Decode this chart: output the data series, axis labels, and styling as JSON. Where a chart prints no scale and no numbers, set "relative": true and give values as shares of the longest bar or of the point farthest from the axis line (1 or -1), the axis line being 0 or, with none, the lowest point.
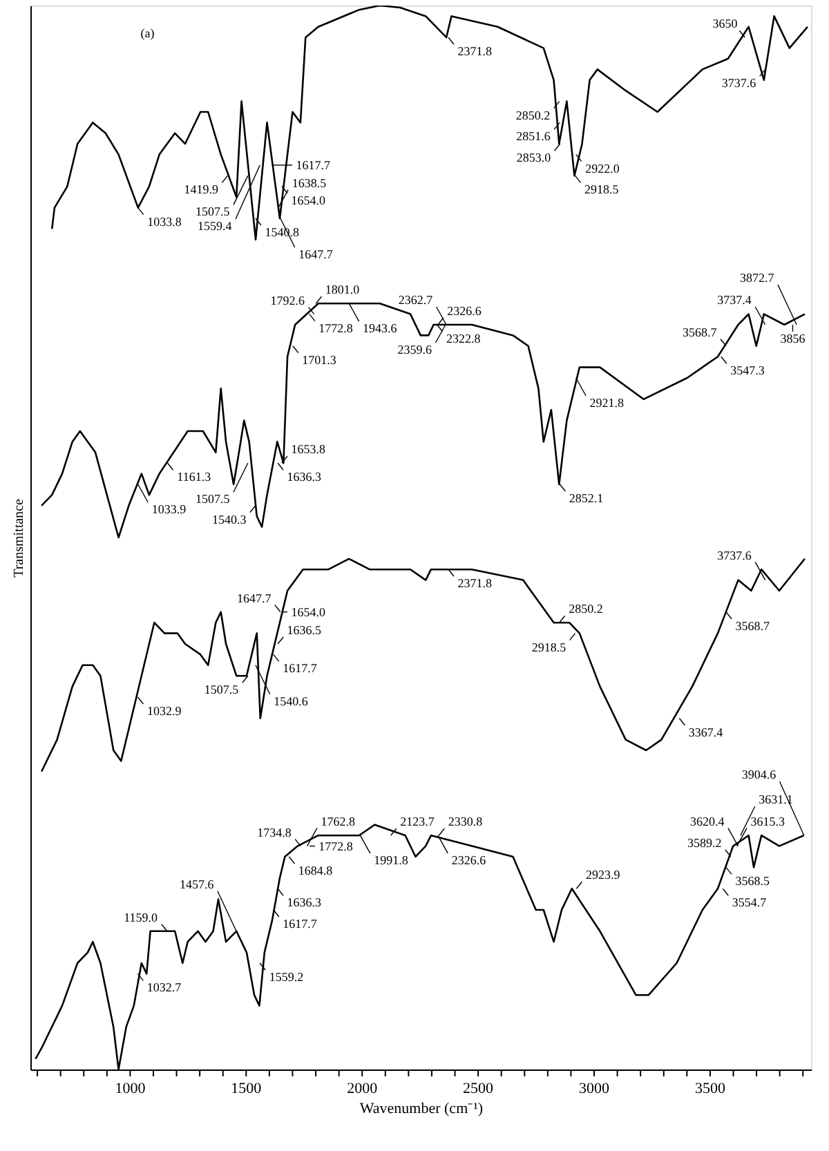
{
  "chart_data": {
    "type": "line",
    "relative": true,
    "xlabel": "Wavenumber (cm⁻¹)",
    "ylabel": "Transmittance",
    "tick_labels": "x",
    "xlim": [
      570,
      3935
    ],
    "xticks": [
      {
        "value": 600,
        "label": null
      },
      {
        "value": 700,
        "label": null
      },
      {
        "value": 800,
        "label": null
      },
      {
        "value": 900,
        "label": null
      },
      1000,
      {
        "value": 1100,
        "label": null
      },
      {
        "value": 1200,
        "label": null
      },
      {
        "value": 1300,
        "label": null
      },
      {
        "value": 1400,
        "label": null
      },
      1500,
      {
        "value": 1600,
        "label": null
      },
      {
        "value": 1700,
        "label": null
      },
      {
        "value": 1800,
        "label": null
      },
      {
        "value": 1900,
        "label": null
      },
      2000,
      {
        "value": 2100,
        "label": null
      },
      {
        "value": 2200,
        "label": null
      },
      {
        "value": 2300,
        "label": null
      },
      {
        "value": 2400,
        "label": null
      },
      2500,
      {
        "value": 2600,
        "label": null
      },
      {
        "value": 2700,
        "label": null
      },
      {
        "value": 2800,
        "label": null
      },
      {
        "value": 2900,
        "label": null
      },
      3000,
      {
        "value": 3100,
        "label": null
      },
      {
        "value": 3200,
        "label": null
      },
      {
        "value": 3300,
        "label": null
      },
      {
        "value": 3400,
        "label": null
      },
      3500,
      {
        "value": 3600,
        "label": null
      },
      {
        "value": 3700,
        "label": null
      },
      {
        "value": 3800,
        "label": null
      },
      {
        "value": 3900,
        "label": null
      }
    ],
    "series": [
      {
        "color": "#000000",
        "x": [
          663,
          674,
          729,
          773,
          839,
          894,
          950,
          1034,
          1082,
          1126,
          1193,
          1237,
          1303,
          1336,
          1391,
          1458,
          1480,
          1541,
          1590,
          1645,
          1700,
          1734,
          1756,
          1811,
          1987,
          2076,
          2164,
          2274,
          2363,
          2385,
          2584,
          2782,
          2826,
          2849,
          2882,
          2915,
          2948,
          2981,
          3014,
          3136,
          3273,
          3467,
          3577,
          3666,
          3732,
          3776,
          3842,
          3920
        ],
        "values": [
          0.79,
          0.81,
          0.83,
          0.87,
          0.89,
          0.88,
          0.86,
          0.81,
          0.83,
          0.86,
          0.88,
          0.87,
          0.9,
          0.9,
          0.86,
          0.82,
          0.91,
          0.78,
          0.89,
          0.8,
          0.9,
          0.89,
          0.97,
          0.98,
          0.996,
          1.0,
          0.998,
          0.99,
          0.97,
          0.99,
          0.98,
          0.96,
          0.93,
          0.87,
          0.91,
          0.84,
          0.87,
          0.93,
          0.94,
          0.92,
          0.9,
          0.94,
          0.95,
          0.98,
          0.93,
          0.99,
          0.96,
          0.98
        ]
      },
      {
        "color": "#000000",
        "x": [
          618,
          663,
          707,
          751,
          784,
          850,
          950,
          994,
          1049,
          1082,
          1126,
          1248,
          1314,
          1369,
          1391,
          1413,
          1446,
          1469,
          1491,
          1513,
          1546,
          1568,
          1590,
          1634,
          1661,
          1678,
          1711,
          1811,
          1888,
          1943,
          2076,
          2208,
          2252,
          2286,
          2308,
          2473,
          2650,
          2716,
          2760,
          2782,
          2815,
          2849,
          2882,
          2937,
          3025,
          3213,
          3401,
          3533,
          3621,
          3666,
          3699,
          3732,
          3820,
          3908
        ],
        "values": [
          0.53,
          0.54,
          0.56,
          0.59,
          0.6,
          0.58,
          0.5,
          0.53,
          0.56,
          0.54,
          0.56,
          0.6,
          0.6,
          0.58,
          0.64,
          0.59,
          0.55,
          0.58,
          0.61,
          0.59,
          0.52,
          0.51,
          0.54,
          0.59,
          0.57,
          0.67,
          0.7,
          0.72,
          0.72,
          0.72,
          0.72,
          0.71,
          0.69,
          0.69,
          0.7,
          0.7,
          0.69,
          0.68,
          0.64,
          0.59,
          0.62,
          0.55,
          0.61,
          0.66,
          0.66,
          0.63,
          0.65,
          0.67,
          0.7,
          0.71,
          0.68,
          0.71,
          0.7,
          0.71
        ]
      },
      {
        "color": "#000000",
        "x": [
          618,
          685,
          751,
          795,
          839,
          872,
          928,
          961,
          994,
          1027,
          1060,
          1104,
          1148,
          1204,
          1237,
          1303,
          1336,
          1369,
          1391,
          1413,
          1458,
          1502,
          1524,
          1546,
          1561,
          1590,
          1634,
          1678,
          1745,
          1855,
          1943,
          2032,
          2208,
          2274,
          2297,
          2473,
          2694,
          2760,
          2826,
          2893,
          2937,
          3025,
          3136,
          3224,
          3290,
          3423,
          3533,
          3621,
          3677,
          3721,
          3798,
          3908
        ],
        "values": [
          0.28,
          0.31,
          0.36,
          0.38,
          0.38,
          0.37,
          0.3,
          0.29,
          0.32,
          0.35,
          0.38,
          0.42,
          0.41,
          0.41,
          0.4,
          0.39,
          0.38,
          0.42,
          0.43,
          0.4,
          0.37,
          0.37,
          0.39,
          0.41,
          0.33,
          0.37,
          0.41,
          0.45,
          0.47,
          0.47,
          0.48,
          0.47,
          0.47,
          0.46,
          0.47,
          0.47,
          0.46,
          0.44,
          0.42,
          0.42,
          0.41,
          0.36,
          0.31,
          0.3,
          0.31,
          0.36,
          0.41,
          0.46,
          0.45,
          0.47,
          0.45,
          0.48
        ]
      },
      {
        "color": "#000000",
        "x": [
          592,
          618,
          707,
          773,
          817,
          839,
          872,
          928,
          950,
          983,
          1016,
          1049,
          1071,
          1087,
          1148,
          1193,
          1226,
          1248,
          1292,
          1325,
          1358,
          1380,
          1413,
          1458,
          1502,
          1535,
          1557,
          1579,
          1612,
          1645,
          1667,
          1722,
          1811,
          1921,
          1987,
          2054,
          2186,
          2230,
          2274,
          2297,
          2473,
          2650,
          2749,
          2782,
          2826,
          2860,
          2904,
          3025,
          3180,
          3235,
          3356,
          3467,
          3533,
          3599,
          3666,
          3688,
          3721,
          3798,
          3904
        ],
        "values": [
          0.01,
          0.02,
          0.06,
          0.1,
          0.11,
          0.12,
          0.1,
          0.04,
          0.0,
          0.04,
          0.06,
          0.1,
          0.09,
          0.13,
          0.13,
          0.13,
          0.1,
          0.12,
          0.13,
          0.12,
          0.13,
          0.16,
          0.12,
          0.13,
          0.11,
          0.07,
          0.06,
          0.11,
          0.14,
          0.18,
          0.2,
          0.21,
          0.22,
          0.22,
          0.22,
          0.23,
          0.22,
          0.2,
          0.21,
          0.22,
          0.21,
          0.2,
          0.15,
          0.15,
          0.12,
          0.15,
          0.17,
          0.13,
          0.07,
          0.07,
          0.1,
          0.15,
          0.17,
          0.21,
          0.22,
          0.19,
          0.22,
          0.21,
          0.22
        ]
      }
    ],
    "annotations": [
      "(a)",
      {
        "text": "1033.8",
        "x": 1033.8,
        "y": 0.81
      },
      {
        "text": "1419.9",
        "x": 1419.9,
        "y": 0.84
      },
      {
        "text": "1507.5",
        "x": 1507.5,
        "y": 0.84
      },
      {
        "text": "1540.8",
        "x": 1540.8,
        "y": 0.8
      },
      {
        "text": "1559.4",
        "x": 1559.4,
        "y": 0.85
      },
      {
        "text": "1654.0",
        "x": 1654.0,
        "y": 0.83
      },
      {
        "text": "1638.5",
        "x": 1638.5,
        "y": 0.81
      },
      {
        "text": "1647.7",
        "x": 1647.7,
        "y": 0.8
      },
      {
        "text": "1617.7",
        "x": 1617.7,
        "y": 0.85
      },
      {
        "text": "2371.8",
        "x": 2371.8,
        "y": 0.97
      },
      {
        "text": "2850.2",
        "x": 2850.2,
        "y": 0.91
      },
      {
        "text": "2851.6",
        "x": 2851.6,
        "y": 0.89
      },
      {
        "text": "2853.0",
        "x": 2853.0,
        "y": 0.87
      },
      {
        "text": "2922.0",
        "x": 2922.0,
        "y": 0.86
      },
      {
        "text": "2918.5",
        "x": 2918.5,
        "y": 0.84
      },
      {
        "text": "3650",
        "x": 3650,
        "y": 0.97
      },
      {
        "text": "3737.6",
        "x": 3737.6,
        "y": 0.94
      },
      {
        "text": "1033.9",
        "x": 1033.9,
        "y": 0.55
      },
      {
        "text": "1161.3",
        "x": 1161.3,
        "y": 0.57
      },
      {
        "text": "1507.5",
        "x": 1507.5,
        "y": 0.57
      },
      {
        "text": "1540.3",
        "x": 1540.3,
        "y": 0.53
      },
      {
        "text": "1636.3",
        "x": 1636.3,
        "y": 0.57
      },
      {
        "text": "1653.8",
        "x": 1653.8,
        "y": 0.57
      },
      {
        "text": "1701.3",
        "x": 1701.3,
        "y": 0.68
      },
      {
        "text": "1772.8",
        "x": 1772.8,
        "y": 0.71
      },
      {
        "text": "1792.6",
        "x": 1792.6,
        "y": 0.71
      },
      {
        "text": "1801.0",
        "x": 1801.0,
        "y": 0.72
      },
      {
        "text": "1943.6",
        "x": 1943.6,
        "y": 0.72
      },
      {
        "text": "2322.8",
        "x": 2322.8,
        "y": 0.7
      },
      {
        "text": "2326.6",
        "x": 2326.6,
        "y": 0.7
      },
      {
        "text": "2359.6",
        "x": 2359.6,
        "y": 0.7
      },
      {
        "text": "2362.7",
        "x": 2362.7,
        "y": 0.7
      },
      {
        "text": "2852.1",
        "x": 2852.1,
        "y": 0.55
      },
      {
        "text": "2921.8",
        "x": 2921.8,
        "y": 0.65
      },
      {
        "text": "3547.3",
        "x": 3547.3,
        "y": 0.67
      },
      {
        "text": "3568.7",
        "x": 3568.7,
        "y": 0.68
      },
      {
        "text": "3737.4",
        "x": 3737.4,
        "y": 0.7
      },
      {
        "text": "3856",
        "x": 3856,
        "y": 0.7
      },
      {
        "text": "3872.7",
        "x": 3872.7,
        "y": 0.7
      },
      {
        "text": "1032.9",
        "x": 1032.9,
        "y": 0.35
      },
      {
        "text": "1507.5",
        "x": 1507.5,
        "y": 0.37
      },
      {
        "text": "1540.6",
        "x": 1540.6,
        "y": 0.38
      },
      {
        "text": "1617.7",
        "x": 1617.7,
        "y": 0.39
      },
      {
        "text": "1636.5",
        "x": 1636.5,
        "y": 0.4
      },
      {
        "text": "1647.7",
        "x": 1647.7,
        "y": 0.43
      },
      {
        "text": "1654.0",
        "x": 1654.0,
        "y": 0.43
      },
      {
        "text": "2371.8",
        "x": 2371.8,
        "y": 0.47
      },
      {
        "text": "2850.2",
        "x": 2850.2,
        "y": 0.42
      },
      {
        "text": "2918.5",
        "x": 2918.5,
        "y": 0.41
      },
      {
        "text": "3367.4",
        "x": 3367.4,
        "y": 0.33
      },
      {
        "text": "3568.7",
        "x": 3568.7,
        "y": 0.43
      },
      {
        "text": "3737.6",
        "x": 3737.6,
        "y": 0.46
      },
      {
        "text": "1032.7",
        "x": 1032.7,
        "y": 0.09
      },
      {
        "text": "1159.0",
        "x": 1159.0,
        "y": 0.13
      },
      {
        "text": "1457.6",
        "x": 1457.6,
        "y": 0.13
      },
      {
        "text": "1559.2",
        "x": 1559.2,
        "y": 0.1
      },
      {
        "text": "1617.7",
        "x": 1617.7,
        "y": 0.15
      },
      {
        "text": "1636.3",
        "x": 1636.3,
        "y": 0.17
      },
      {
        "text": "1684.8",
        "x": 1684.8,
        "y": 0.2
      },
      {
        "text": "1734.8",
        "x": 1734.8,
        "y": 0.21
      },
      {
        "text": "1762.8",
        "x": 1762.8,
        "y": 0.21
      },
      {
        "text": "1772.8",
        "x": 1772.8,
        "y": 0.21
      },
      {
        "text": "1991.8",
        "x": 1991.8,
        "y": 0.22
      },
      {
        "text": "2123.7",
        "x": 2123.7,
        "y": 0.22
      },
      {
        "text": "2330.8",
        "x": 2330.8,
        "y": 0.22
      },
      {
        "text": "2326.6",
        "x": 2326.6,
        "y": 0.22
      },
      {
        "text": "2923.9",
        "x": 2923.9,
        "y": 0.17
      },
      {
        "text": "3554.7",
        "x": 3554.7,
        "y": 0.17
      },
      {
        "text": "3568.5",
        "x": 3568.5,
        "y": 0.19
      },
      {
        "text": "3589.2",
        "x": 3589.2,
        "y": 0.2
      },
      {
        "text": "3615.3",
        "x": 3615.3,
        "y": 0.21
      },
      {
        "text": "3620.4",
        "x": 3620.4,
        "y": 0.21
      },
      {
        "text": "3631.1",
        "x": 3631.1,
        "y": 0.22
      },
      {
        "text": "3904.6",
        "x": 3904.6,
        "y": 0.22
      }
    ]
  }
}
